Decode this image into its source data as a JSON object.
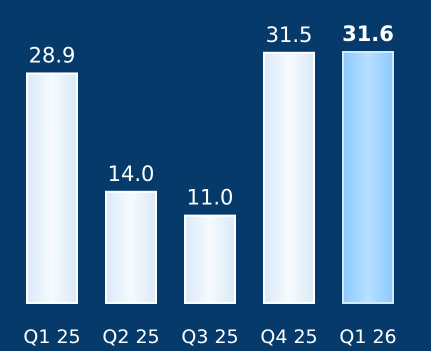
{
  "colors": {
    "background": "#063a6b",
    "bar_fill": "#eef6fd",
    "bar_edge": "#ffffff",
    "highlight_fill": "#9fd3ff",
    "highlight_edge": "#cfeaff",
    "text": "#ffffff"
  },
  "chart_data": {
    "type": "bar",
    "title": "",
    "xlabel": "",
    "ylabel": "",
    "categories": [
      "Q1 25",
      "Q2 25",
      "Q3 25",
      "Q4 25",
      "Q1 26"
    ],
    "values": [
      28.9,
      14.0,
      11.0,
      31.5,
      31.6
    ],
    "value_labels": [
      "28.9",
      "14.0",
      "11.0",
      "31.5",
      "31.6"
    ],
    "highlight_index": 4,
    "ylim": [
      0,
      31.6
    ],
    "grid": false,
    "legend": "none"
  }
}
